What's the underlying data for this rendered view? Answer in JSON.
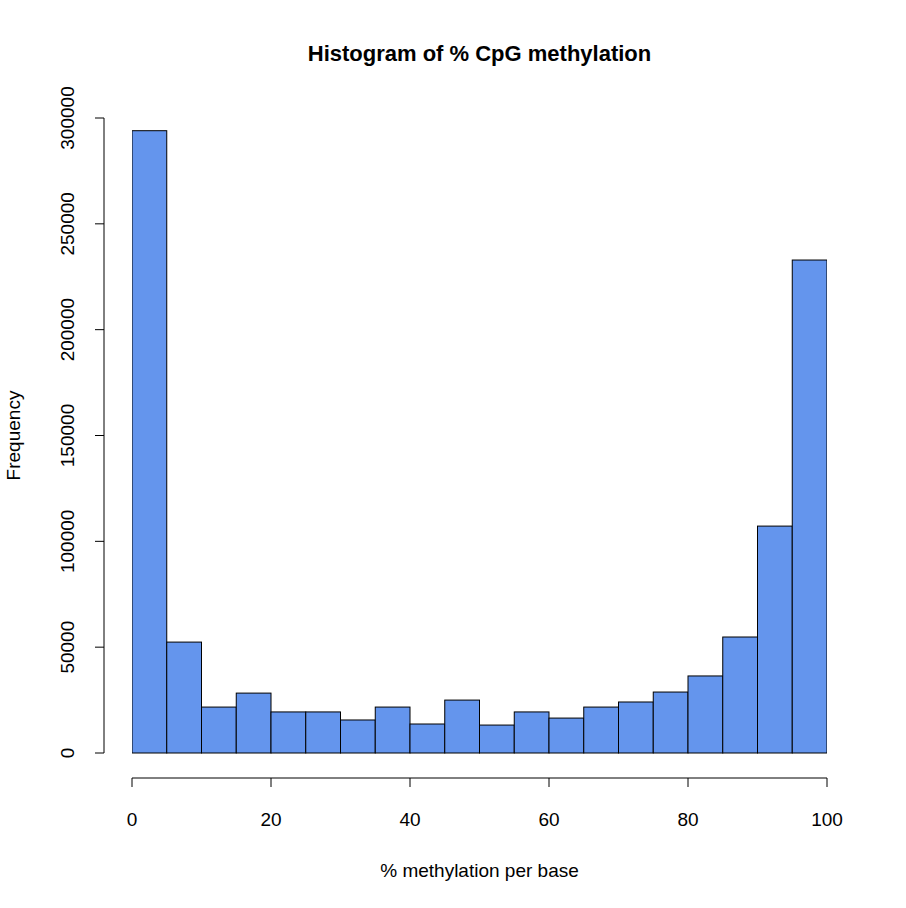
{
  "chart_data": {
    "type": "histogram",
    "title": "Histogram of % CpG methylation",
    "x_label": "% methylation per base",
    "y_label": "Frequency",
    "bins": [
      0,
      5,
      10,
      15,
      20,
      25,
      30,
      35,
      40,
      45,
      50,
      55,
      60,
      65,
      70,
      75,
      80,
      85,
      90,
      95,
      100
    ],
    "values": [
      294000,
      52400,
      21700,
      28300,
      19400,
      19400,
      15600,
      21700,
      13700,
      25000,
      13200,
      19400,
      16500,
      21700,
      24100,
      28800,
      36400,
      54800,
      107200,
      232900
    ],
    "color": "#6495ed",
    "xlim": [
      0,
      100
    ],
    "xticks": [
      0,
      20,
      40,
      60,
      80,
      100
    ],
    "ylim": [
      0,
      300000
    ],
    "yticks": [
      0,
      50000,
      100000,
      150000,
      200000,
      250000,
      300000
    ],
    "grid": false
  }
}
